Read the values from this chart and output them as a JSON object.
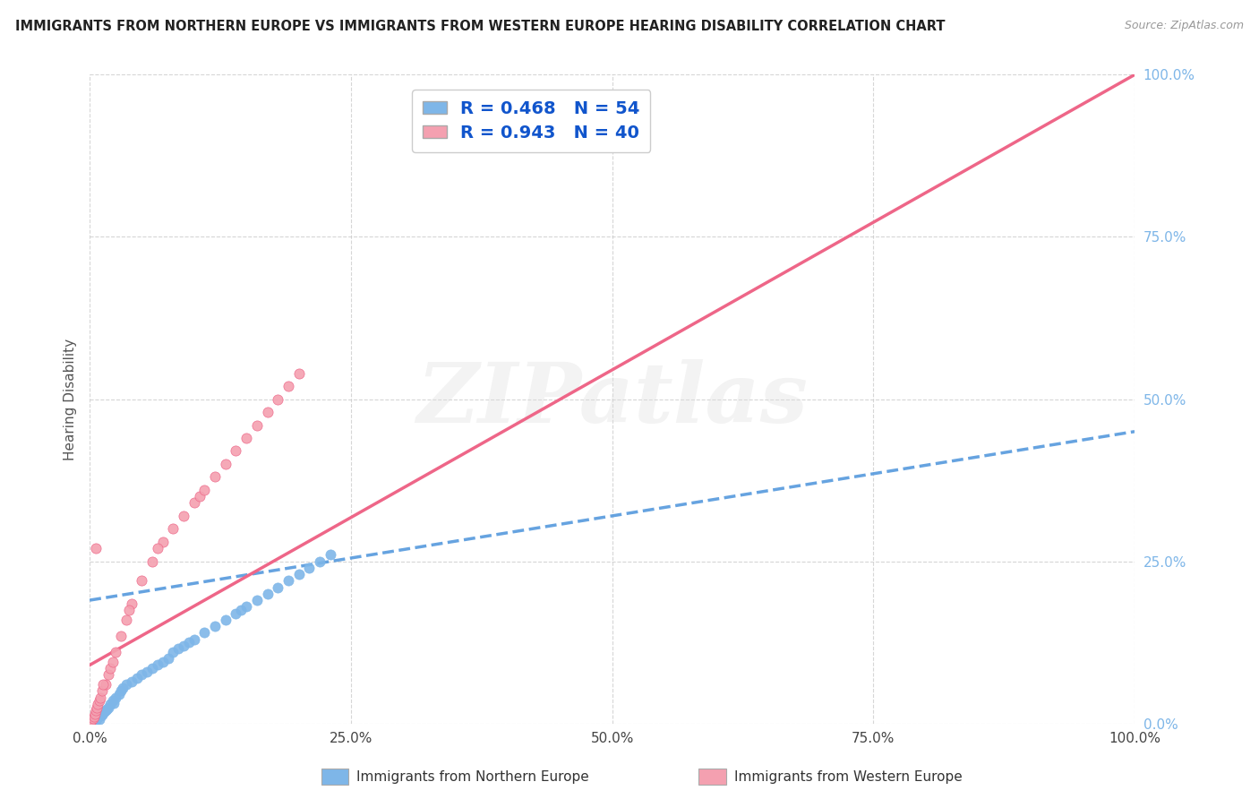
{
  "title": "IMMIGRANTS FROM NORTHERN EUROPE VS IMMIGRANTS FROM WESTERN EUROPE HEARING DISABILITY CORRELATION CHART",
  "source": "Source: ZipAtlas.com",
  "ylabel": "Hearing Disability",
  "xlim": [
    0,
    100
  ],
  "ylim": [
    0,
    100
  ],
  "series1_label": "Immigrants from Northern Europe",
  "series2_label": "Immigrants from Western Europe",
  "series1_color": "#7EB6E8",
  "series1_line_color": "#5599DD",
  "series2_color": "#F4A0B0",
  "series2_line_color": "#EE6688",
  "series1_R": "0.468",
  "series1_N": "54",
  "series2_R": "0.943",
  "series2_N": "40",
  "watermark_text": "ZIPatlas",
  "reg1_x0": 0,
  "reg1_y0": 19,
  "reg1_x1": 100,
  "reg1_y1": 45,
  "reg2_x0": 0,
  "reg2_y0": 9,
  "reg2_x1": 100,
  "reg2_y1": 100,
  "series1_x": [
    0.1,
    0.2,
    0.3,
    0.4,
    0.5,
    0.6,
    0.7,
    0.8,
    0.9,
    1.0,
    1.1,
    1.2,
    1.4,
    1.5,
    1.6,
    1.8,
    2.0,
    2.2,
    2.5,
    2.8,
    3.0,
    3.2,
    3.5,
    4.0,
    4.5,
    5.0,
    5.5,
    6.0,
    6.5,
    7.0,
    7.5,
    8.0,
    8.5,
    9.0,
    9.5,
    10.0,
    11.0,
    12.0,
    13.0,
    14.0,
    14.5,
    15.0,
    16.0,
    17.0,
    18.0,
    19.0,
    20.0,
    21.0,
    22.0,
    23.0,
    0.15,
    0.25,
    0.35,
    2.3
  ],
  "series1_y": [
    0.2,
    0.3,
    0.5,
    0.4,
    0.6,
    0.5,
    0.8,
    1.0,
    0.7,
    1.2,
    1.5,
    1.3,
    1.8,
    2.0,
    2.2,
    2.5,
    3.0,
    3.5,
    4.0,
    4.5,
    5.0,
    5.5,
    6.0,
    6.5,
    7.0,
    7.5,
    8.0,
    8.5,
    9.0,
    9.5,
    10.0,
    11.0,
    11.5,
    12.0,
    12.5,
    13.0,
    14.0,
    15.0,
    16.0,
    17.0,
    17.5,
    18.0,
    19.0,
    20.0,
    21.0,
    22.0,
    23.0,
    24.0,
    25.0,
    26.0,
    0.2,
    0.4,
    0.6,
    3.2
  ],
  "series2_x": [
    0.1,
    0.2,
    0.3,
    0.4,
    0.5,
    0.6,
    0.7,
    0.8,
    0.9,
    1.0,
    1.2,
    1.5,
    1.8,
    2.0,
    2.5,
    3.0,
    3.5,
    4.0,
    5.0,
    6.0,
    7.0,
    8.0,
    9.0,
    10.0,
    10.5,
    11.0,
    12.0,
    13.0,
    14.0,
    15.0,
    16.0,
    17.0,
    18.0,
    19.0,
    20.0,
    1.3,
    2.2,
    3.8,
    6.5,
    0.6
  ],
  "series2_y": [
    0.3,
    0.5,
    0.8,
    1.0,
    1.5,
    2.0,
    2.5,
    3.0,
    3.5,
    4.0,
    5.0,
    6.0,
    7.5,
    8.5,
    11.0,
    13.5,
    16.0,
    18.5,
    22.0,
    25.0,
    28.0,
    30.0,
    32.0,
    34.0,
    35.0,
    36.0,
    38.0,
    40.0,
    42.0,
    44.0,
    46.0,
    48.0,
    50.0,
    52.0,
    54.0,
    6.0,
    9.5,
    17.5,
    27.0,
    27.0
  ]
}
